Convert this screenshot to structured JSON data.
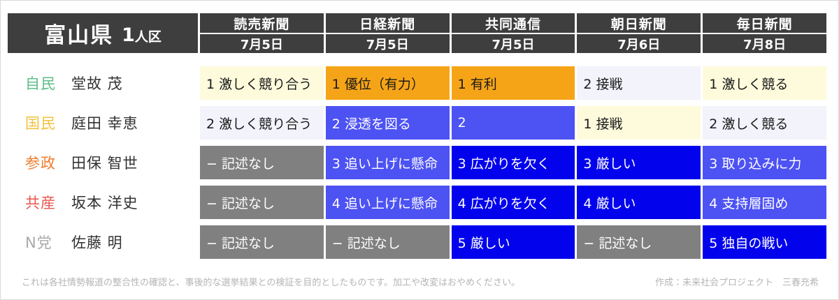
{
  "title": {
    "prefecture": "富山県",
    "district": "1人区"
  },
  "chart_data": {
    "type": "table",
    "title": "富山県 1人区",
    "columns": [
      {
        "paper": "読売新聞",
        "date": "7月5日"
      },
      {
        "paper": "日経新聞",
        "date": "7月5日"
      },
      {
        "paper": "共同通信",
        "date": "7月5日"
      },
      {
        "paper": "朝日新聞",
        "date": "7月6日"
      },
      {
        "paper": "毎日新聞",
        "date": "7月8日"
      }
    ],
    "rows": [
      {
        "party": "自民",
        "party_color": "#5fbd8a",
        "name": "堂故 茂",
        "cells": [
          {
            "text": "1 激しく競り合う",
            "tone": "cream"
          },
          {
            "text": "1 優位（有力）",
            "tone": "orange"
          },
          {
            "text": "1 有利",
            "tone": "orange"
          },
          {
            "text": "2 接戦",
            "tone": "lavender"
          },
          {
            "text": "1 激しく競る",
            "tone": "cream"
          }
        ]
      },
      {
        "party": "国民",
        "party_color": "#f2c23e",
        "name": "庭田 幸恵",
        "cells": [
          {
            "text": "2 激しく競り合う",
            "tone": "lavender"
          },
          {
            "text": "2 浸透を図る",
            "tone": "violet"
          },
          {
            "text": "2",
            "tone": "violet"
          },
          {
            "text": "1 接戦",
            "tone": "cream"
          },
          {
            "text": "2 激しく競る",
            "tone": "lavender"
          }
        ]
      },
      {
        "party": "参政",
        "party_color": "#ee7d2e",
        "name": "田保 智世",
        "cells": [
          {
            "text": "− 記述なし",
            "tone": "gray"
          },
          {
            "text": "3 追い上げに懸命",
            "tone": "violet"
          },
          {
            "text": "3 広がりを欠く",
            "tone": "blue"
          },
          {
            "text": "3 厳しい",
            "tone": "blue"
          },
          {
            "text": "3 取り込みに力",
            "tone": "violet"
          }
        ]
      },
      {
        "party": "共産",
        "party_color": "#e9544b",
        "name": "坂本 洋史",
        "cells": [
          {
            "text": "− 記述なし",
            "tone": "gray"
          },
          {
            "text": "4 追い上げに懸命",
            "tone": "violet"
          },
          {
            "text": "4 広がりを欠く",
            "tone": "blue"
          },
          {
            "text": "4 厳しい",
            "tone": "blue"
          },
          {
            "text": "4 支持層固め",
            "tone": "violet"
          }
        ]
      },
      {
        "party": "N党",
        "party_color": "#a9a9a9",
        "name": "佐藤 明",
        "cells": [
          {
            "text": "− 記述なし",
            "tone": "gray"
          },
          {
            "text": "− 記述なし",
            "tone": "gray"
          },
          {
            "text": "5 厳しい",
            "tone": "blue"
          },
          {
            "text": "− 記述なし",
            "tone": "gray"
          },
          {
            "text": "5 独自の戦い",
            "tone": "blue"
          }
        ]
      }
    ],
    "tone_colors": {
      "cream": "#fdfbdc",
      "lavender": "#f2f3fb",
      "orange": "#f6a417",
      "violet": "#4d52f3",
      "blue": "#0202ec",
      "gray": "#808080"
    },
    "header_color": "#3e3e3e"
  },
  "footer": {
    "left": "これは各社情勢報道の整合性の確認と、事後的な選挙結果との検証を目的としたものです。加工や改変はおやめください。",
    "right": "作成：未来社会プロジェクト　三春充希"
  }
}
